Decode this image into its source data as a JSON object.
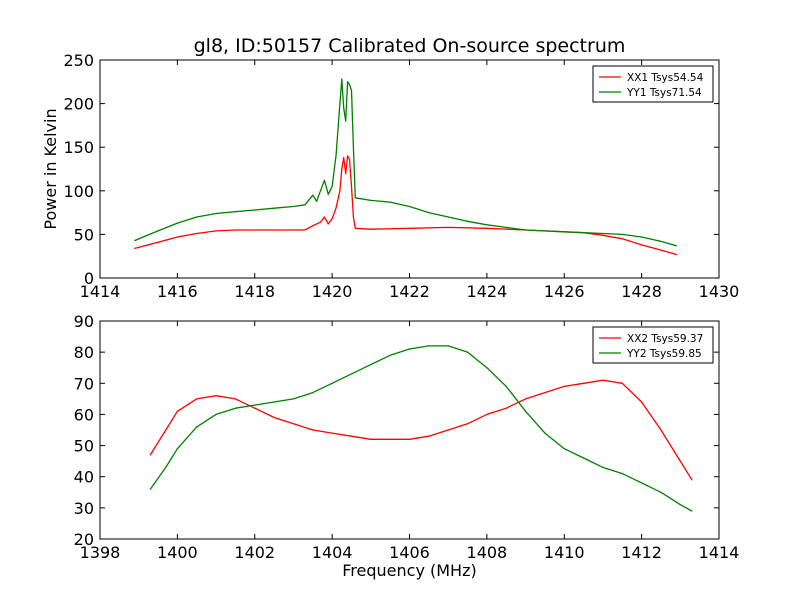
{
  "chart_data": [
    {
      "type": "line",
      "title": "gl8, ID:50157 Calibrated On-source spectrum",
      "xlabel": "",
      "ylabel": "Power in Kelvin",
      "xlim": [
        1414,
        1430
      ],
      "ylim": [
        0,
        250
      ],
      "xticks": [
        "1414",
        "1416",
        "1418",
        "1420",
        "1422",
        "1424",
        "1426",
        "1428",
        "1430"
      ],
      "yticks": [
        "0",
        "50",
        "100",
        "150",
        "200",
        "250"
      ],
      "grid": false,
      "legend_position": "top-right",
      "series": [
        {
          "name": "XX1 Tsys54.54",
          "color": "#ff0000",
          "x": [
            1414.9,
            1415.5,
            1416.0,
            1416.5,
            1417.0,
            1417.5,
            1418.0,
            1418.5,
            1419.0,
            1419.3,
            1419.5,
            1419.7,
            1419.8,
            1419.9,
            1420.0,
            1420.1,
            1420.2,
            1420.25,
            1420.3,
            1420.35,
            1420.4,
            1420.45,
            1420.5,
            1420.55,
            1420.6,
            1421.0,
            1422.0,
            1423.0,
            1424.0,
            1425.0,
            1426.0,
            1426.5,
            1427.0,
            1427.5,
            1428.0,
            1428.5,
            1428.9
          ],
          "y": [
            34,
            41,
            47,
            51,
            54,
            55,
            55,
            55,
            55,
            55,
            60,
            64,
            70,
            62,
            68,
            80,
            100,
            125,
            138,
            120,
            140,
            136,
            105,
            70,
            57,
            56,
            57,
            58,
            57,
            55,
            53,
            52,
            49,
            45,
            38,
            32,
            27
          ]
        },
        {
          "name": "YY1 Tsys71.54",
          "color": "#008000",
          "x": [
            1414.9,
            1415.5,
            1416.0,
            1416.5,
            1417.0,
            1417.5,
            1418.0,
            1418.5,
            1419.0,
            1419.3,
            1419.5,
            1419.6,
            1419.7,
            1419.8,
            1419.9,
            1420.0,
            1420.1,
            1420.2,
            1420.25,
            1420.3,
            1420.35,
            1420.4,
            1420.45,
            1420.5,
            1420.55,
            1420.6,
            1421.0,
            1421.5,
            1422.0,
            1422.5,
            1423.0,
            1423.5,
            1424.0,
            1424.5,
            1425.0,
            1425.5,
            1426.0,
            1426.5,
            1427.0,
            1427.5,
            1428.0,
            1428.5,
            1428.9
          ],
          "y": [
            43,
            54,
            63,
            70,
            74,
            76,
            78,
            80,
            82,
            84,
            95,
            88,
            100,
            112,
            96,
            105,
            140,
            200,
            228,
            195,
            180,
            225,
            222,
            215,
            150,
            92,
            89,
            87,
            82,
            75,
            70,
            65,
            61,
            58,
            55,
            54,
            53,
            52,
            51,
            50,
            47,
            42,
            37
          ]
        }
      ]
    },
    {
      "type": "line",
      "title": "",
      "xlabel": "Frequency (MHz)",
      "ylabel": "",
      "xlim": [
        1398,
        1414
      ],
      "ylim": [
        20,
        90
      ],
      "xticks": [
        "1398",
        "1400",
        "1402",
        "1404",
        "1406",
        "1408",
        "1410",
        "1412",
        "1414"
      ],
      "yticks": [
        "20",
        "30",
        "40",
        "50",
        "60",
        "70",
        "80",
        "90"
      ],
      "grid": false,
      "legend_position": "top-right",
      "series": [
        {
          "name": "XX2 Tsys59.37",
          "color": "#ff0000",
          "x": [
            1399.3,
            1399.7,
            1400.0,
            1400.5,
            1401.0,
            1401.5,
            1402.0,
            1402.5,
            1403.0,
            1403.5,
            1404.0,
            1404.5,
            1405.0,
            1405.5,
            1406.0,
            1406.5,
            1407.0,
            1407.5,
            1408.0,
            1408.5,
            1409.0,
            1409.5,
            1410.0,
            1410.5,
            1411.0,
            1411.5,
            1412.0,
            1412.5,
            1413.0,
            1413.3
          ],
          "y": [
            47,
            55,
            61,
            65,
            66,
            65,
            62,
            59,
            57,
            55,
            54,
            53,
            52,
            52,
            52,
            53,
            55,
            57,
            60,
            62,
            65,
            67,
            69,
            70,
            71,
            70,
            64,
            55,
            45,
            39
          ]
        },
        {
          "name": "YY2 Tsys59.85",
          "color": "#008000",
          "x": [
            1399.3,
            1399.7,
            1400.0,
            1400.5,
            1401.0,
            1401.5,
            1402.0,
            1402.5,
            1403.0,
            1403.5,
            1404.0,
            1404.5,
            1405.0,
            1405.5,
            1406.0,
            1406.5,
            1407.0,
            1407.5,
            1408.0,
            1408.5,
            1409.0,
            1409.5,
            1410.0,
            1410.5,
            1411.0,
            1411.5,
            1412.0,
            1412.5,
            1413.0,
            1413.3
          ],
          "y": [
            36,
            43,
            49,
            56,
            60,
            62,
            63,
            64,
            65,
            67,
            70,
            73,
            76,
            79,
            81,
            82,
            82,
            80,
            75,
            69,
            61,
            54,
            49,
            46,
            43,
            41,
            38,
            35,
            31,
            29
          ]
        }
      ]
    }
  ]
}
